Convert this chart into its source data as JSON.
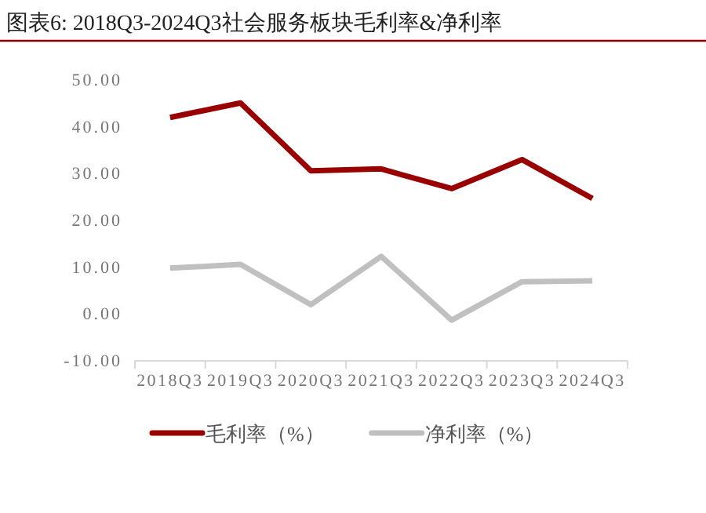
{
  "chart_data": {
    "type": "line",
    "title": "图表6:  2018Q3-2024Q3社会服务板块毛利率&净利率",
    "categories": [
      "2018Q3",
      "2019Q3",
      "2020Q3",
      "2021Q3",
      "2022Q3",
      "2023Q3",
      "2024Q3"
    ],
    "series": [
      {
        "name": "毛利率（%）",
        "color": "#990000",
        "values": [
          42.0,
          45.1,
          30.6,
          31.0,
          26.8,
          33.0,
          24.7
        ]
      },
      {
        "name": "净利率（%）",
        "color": "#c0c0c0",
        "values": [
          9.8,
          10.6,
          2.0,
          12.3,
          -1.3,
          6.9,
          7.1
        ]
      }
    ],
    "ylim": [
      -10,
      50
    ],
    "yticks": [
      {
        "value": -10,
        "label": "-10.00"
      },
      {
        "value": 0,
        "label": "0.00"
      },
      {
        "value": 10,
        "label": "10.00"
      },
      {
        "value": 20,
        "label": "20.00"
      },
      {
        "value": 30,
        "label": "30.00"
      },
      {
        "value": 40,
        "label": "40.00"
      },
      {
        "value": 50,
        "label": "50.00"
      }
    ],
    "grid": false,
    "legend": "bottom",
    "marker": "none",
    "line_style": "solid"
  }
}
